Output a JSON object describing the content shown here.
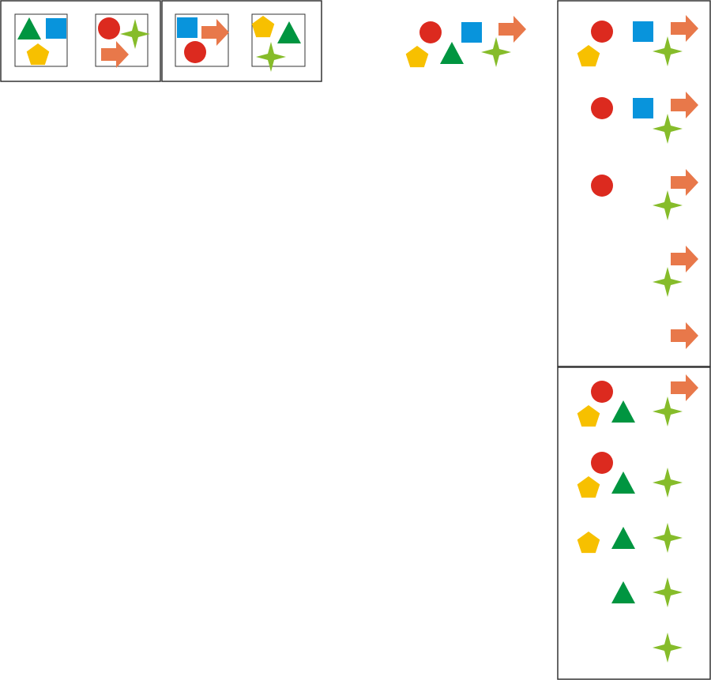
{
  "colors": {
    "circle": "#dc2a1f",
    "square": "#0894dc",
    "arrow": "#e8784a",
    "star": "#86bc2a",
    "pentagon": "#f7c000",
    "triangle": "#009540",
    "frame": "#333333"
  },
  "groups": [
    {
      "name": "option-1-box-a",
      "shapes": [
        "triangle",
        "square",
        "pentagon"
      ]
    },
    {
      "name": "option-1-box-b",
      "shapes": [
        "circle",
        "star",
        "arrow"
      ]
    },
    {
      "name": "option-2-box-a",
      "shapes": [
        "square",
        "arrow",
        "circle"
      ]
    },
    {
      "name": "option-2-box-b",
      "shapes": [
        "pentagon",
        "triangle",
        "star"
      ]
    },
    {
      "name": "loose-shapes",
      "shapes": [
        "circle",
        "square",
        "arrow",
        "pentagon",
        "triangle",
        "star"
      ]
    },
    {
      "name": "top-panel-row-1",
      "shapes": [
        "circle",
        "square",
        "arrow",
        "pentagon",
        "star"
      ]
    },
    {
      "name": "top-panel-row-2",
      "shapes": [
        "circle",
        "square",
        "arrow",
        "star"
      ]
    },
    {
      "name": "top-panel-row-3",
      "shapes": [
        "circle",
        "arrow",
        "star"
      ]
    },
    {
      "name": "top-panel-row-4",
      "shapes": [
        "arrow",
        "star"
      ]
    },
    {
      "name": "top-panel-row-5",
      "shapes": [
        "arrow"
      ]
    },
    {
      "name": "bottom-panel-row-1",
      "shapes": [
        "circle",
        "arrow",
        "pentagon",
        "triangle",
        "star"
      ]
    },
    {
      "name": "bottom-panel-row-2",
      "shapes": [
        "circle",
        "pentagon",
        "triangle",
        "star"
      ]
    },
    {
      "name": "bottom-panel-row-3",
      "shapes": [
        "pentagon",
        "triangle",
        "star"
      ]
    },
    {
      "name": "bottom-panel-row-4",
      "shapes": [
        "triangle",
        "star"
      ]
    },
    {
      "name": "bottom-panel-row-5",
      "shapes": [
        "star"
      ]
    }
  ]
}
